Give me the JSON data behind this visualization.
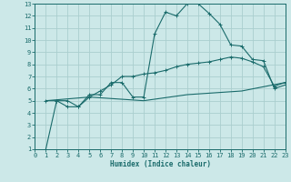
{
  "xlabel": "Humidex (Indice chaleur)",
  "background_color": "#cce8e8",
  "grid_color": "#aacece",
  "line_color": "#1a6b6b",
  "xlim": [
    0,
    23
  ],
  "ylim": [
    1,
    13
  ],
  "xticks": [
    0,
    1,
    2,
    3,
    4,
    5,
    6,
    7,
    8,
    9,
    10,
    11,
    12,
    13,
    14,
    15,
    16,
    17,
    18,
    19,
    20,
    21,
    22,
    23
  ],
  "yticks": [
    1,
    2,
    3,
    4,
    5,
    6,
    7,
    8,
    9,
    10,
    11,
    12,
    13
  ],
  "line1_x": [
    1,
    2,
    3,
    4,
    5,
    6,
    7,
    8,
    9,
    10,
    11,
    12,
    13,
    14,
    15,
    16,
    17,
    18,
    19,
    20,
    21,
    22,
    23
  ],
  "line1_y": [
    1.0,
    5.0,
    5.0,
    4.5,
    5.5,
    5.5,
    6.5,
    6.5,
    5.3,
    5.3,
    10.5,
    12.3,
    12.0,
    13.0,
    13.0,
    12.2,
    11.3,
    9.6,
    9.5,
    8.4,
    8.3,
    6.0,
    6.3
  ],
  "line2_x": [
    1,
    2,
    3,
    4,
    5,
    6,
    7,
    8,
    9,
    10,
    11,
    12,
    13,
    14,
    15,
    16,
    17,
    18,
    19,
    20,
    21,
    22,
    23
  ],
  "line2_y": [
    5.0,
    5.0,
    4.5,
    4.5,
    5.3,
    5.8,
    6.3,
    7.0,
    7.0,
    7.2,
    7.3,
    7.5,
    7.8,
    8.0,
    8.1,
    8.2,
    8.4,
    8.6,
    8.5,
    8.2,
    7.8,
    6.2,
    6.5
  ],
  "line3_x": [
    1,
    5,
    10,
    14,
    19,
    23
  ],
  "line3_y": [
    5.0,
    5.3,
    5.0,
    5.5,
    5.8,
    6.5
  ]
}
